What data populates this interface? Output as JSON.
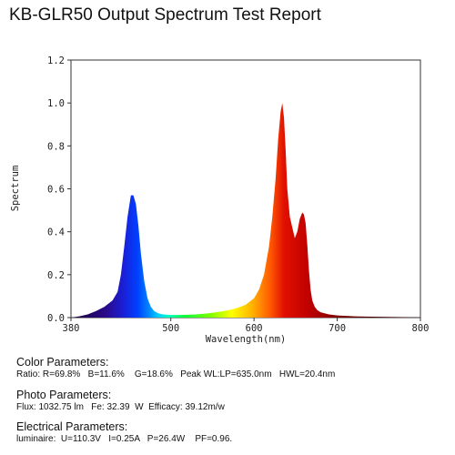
{
  "title": "KB-GLR50 Output Spectrum Test Report",
  "chart_data": {
    "type": "area",
    "xlabel": "Wavelength(nm)",
    "ylabel": "Spectrum",
    "xlim": [
      380,
      800
    ],
    "ylim": [
      0,
      1.2
    ],
    "xticks": [
      380,
      500,
      600,
      700,
      800
    ],
    "yticks": [
      0.0,
      0.2,
      0.4,
      0.6,
      0.8,
      1.0,
      1.2
    ],
    "xtick_labels": [
      "380",
      "500",
      "600",
      "700",
      "800"
    ],
    "ytick_labels": [
      "0.0",
      "0.2",
      "0.4",
      "0.6",
      "0.8",
      "1.0",
      "1.2"
    ],
    "grid": false,
    "fill": "wavelength-color gradient",
    "x": [
      380,
      390,
      400,
      410,
      420,
      430,
      436,
      440,
      444,
      448,
      452,
      455,
      458,
      461,
      464,
      468,
      472,
      476,
      480,
      485,
      490,
      500,
      510,
      520,
      530,
      540,
      550,
      560,
      570,
      580,
      590,
      600,
      606,
      612,
      618,
      622,
      626,
      629,
      632,
      634,
      636,
      638,
      640,
      643,
      646,
      649,
      652,
      655,
      658,
      660,
      662,
      664,
      666,
      668,
      670,
      673,
      676,
      680,
      690,
      700,
      720,
      740,
      760,
      780,
      800
    ],
    "y": [
      0.0,
      0.006,
      0.015,
      0.03,
      0.05,
      0.08,
      0.12,
      0.2,
      0.33,
      0.47,
      0.57,
      0.57,
      0.53,
      0.43,
      0.3,
      0.17,
      0.09,
      0.05,
      0.03,
      0.02,
      0.015,
      0.012,
      0.012,
      0.013,
      0.015,
      0.018,
      0.022,
      0.028,
      0.035,
      0.045,
      0.06,
      0.09,
      0.13,
      0.2,
      0.33,
      0.47,
      0.65,
      0.83,
      0.96,
      1.0,
      0.93,
      0.78,
      0.6,
      0.47,
      0.42,
      0.37,
      0.4,
      0.46,
      0.49,
      0.48,
      0.44,
      0.34,
      0.22,
      0.13,
      0.08,
      0.05,
      0.035,
      0.025,
      0.015,
      0.01,
      0.006,
      0.004,
      0.003,
      0.002,
      0.0
    ]
  },
  "params": {
    "color": {
      "heading": "Color Parameters:",
      "line": "Ratio: R=69.8%   B=11.6%    G=18.6%   Peak WL:LP=635.0nm   HWL=20.4nm"
    },
    "photo": {
      "heading": "Photo Parameters:",
      "line": "Flux: 1032.75 lm   Fe: 32.39  W  Efficacy: 39.12m/w"
    },
    "electrical": {
      "heading": "Electrical Parameters:",
      "line": "luminaire:  U=110.3V   I=0.25A   P=26.4W    PF=0.96."
    }
  }
}
